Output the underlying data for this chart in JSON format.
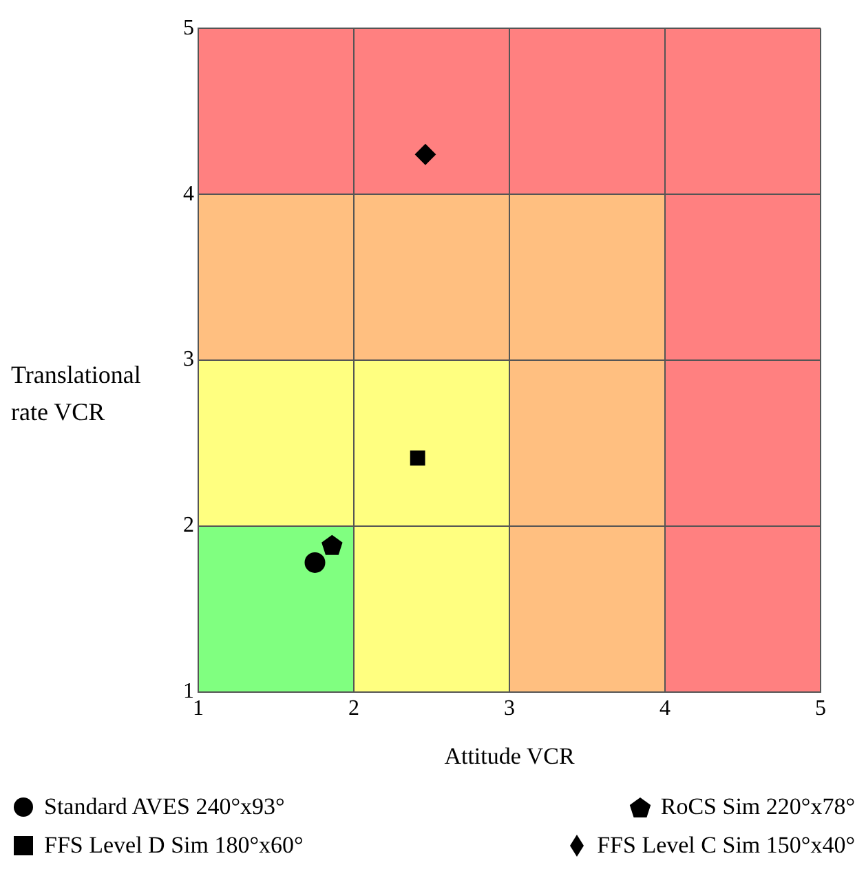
{
  "chart_data": {
    "type": "scatter",
    "xlabel": "Attitude VCR",
    "ylabel": "Translational rate VCR",
    "xlim": [
      1,
      5
    ],
    "ylim": [
      1,
      5
    ],
    "xticks": [
      1,
      2,
      3,
      4,
      5
    ],
    "yticks": [
      1,
      2,
      3,
      4,
      5
    ],
    "grid": true,
    "legend": "bottom",
    "series": [
      {
        "name": "Standard AVES 240°x93°",
        "color": "#000000",
        "marker": "circle",
        "x": [
          1.75
        ],
        "values": [
          1.78
        ]
      },
      {
        "name": "RoCS Sim 220°x78°",
        "color": "#000000",
        "x": [
          1.86
        ],
        "values": [
          1.88
        ]
      },
      {
        "name": "FFS Level D Sim 180°x60°",
        "color": "#000000",
        "marker": "square",
        "x": [
          2.41
        ],
        "values": [
          2.41
        ]
      },
      {
        "name": "FFS Level C Sim 150°x40°",
        "color": "#000000",
        "marker": "diamond",
        "x": [
          2.46
        ],
        "values": [
          4.24
        ]
      }
    ]
  }
}
